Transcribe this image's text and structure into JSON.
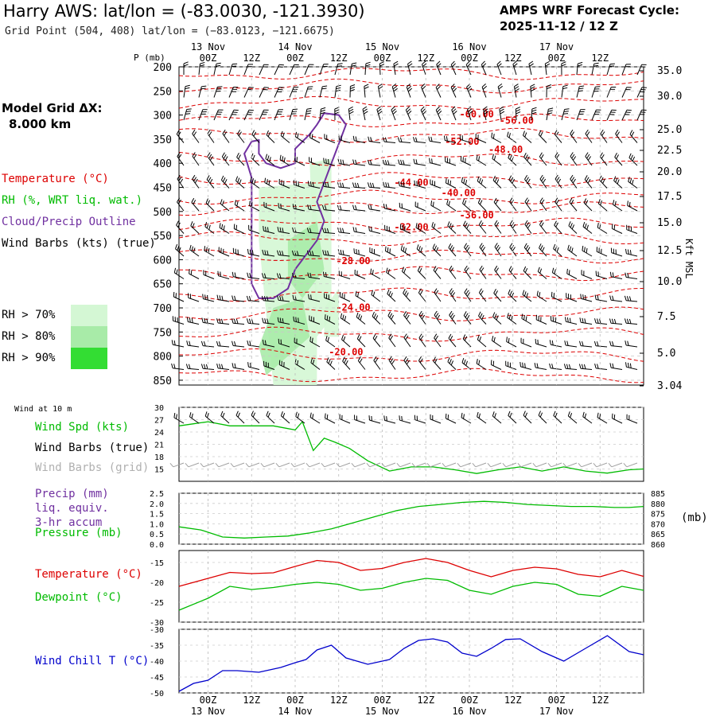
{
  "header": {
    "title": "Harry AWS:  lat/lon = (-83.0030, -121.3930)",
    "subtitle": "Grid Point (504, 408) lat/lon = (−83.0123, −121.6675)",
    "cycle_line1": "AMPS WRF Forecast Cycle:",
    "cycle_line2": "2025-11-12 / 12  Z",
    "grid_line1": "Model Grid ΔX:",
    "grid_line2": "8.000 km"
  },
  "colors": {
    "red": "#dd0000",
    "green": "#00bb00",
    "purple": "#7030a0",
    "blue": "#0000cc",
    "gray": "#a0a0a0",
    "rh70": "#d4f7d4",
    "rh80": "#a8eba8",
    "rh90": "#33dd33"
  },
  "time_axis": {
    "top_dates": [
      "13 Nov",
      "14 Nov",
      "15 Nov",
      "16 Nov",
      "17 Nov"
    ],
    "top_hours": [
      "00Z",
      "12Z",
      "00Z",
      "12Z",
      "00Z",
      "12Z",
      "00Z",
      "12Z",
      "00Z",
      "12Z"
    ],
    "bottom_hours": [
      "00Z",
      "12Z",
      "00Z",
      "12Z",
      "00Z",
      "12Z",
      "00Z",
      "12Z",
      "00Z",
      "12Z"
    ],
    "bottom_dates": [
      "13 Nov",
      "14 Nov",
      "15 Nov",
      "16 Nov",
      "17 Nov"
    ],
    "span_hours_before_first": 8,
    "total_hours": 120
  },
  "upper_panel": {
    "p_label": "P (mb)",
    "pressure_ticks": [
      "200",
      "250",
      "300",
      "350",
      "400",
      "450",
      "500",
      "550",
      "600",
      "650",
      "700",
      "750",
      "800",
      "850"
    ],
    "height_ticks": [
      "35.0",
      "30.0",
      "25.0",
      "22.5",
      "20.0",
      "17.5",
      "15.0",
      "12.5",
      "10.0",
      "7.5",
      "5.0",
      "3.04"
    ],
    "height_axis_label": "Kft MSL",
    "legend_temperature": "Temperature (°C)",
    "legend_rh": "RH (%, WRT liq. wat.)",
    "legend_cloud": "Cloud/Precip Outline",
    "legend_wind": "Wind Barbs (kts) (true)",
    "rh_legend": [
      "RH > 70%",
      "RH > 80%",
      "RH > 90%"
    ]
  },
  "chart_data": [
    {
      "type": "line",
      "title": "Temperature cross-section isotherms",
      "ylabel": "Pressure (mb)",
      "ylim": [
        860,
        200
      ],
      "isotherm_labels": [
        {
          "label": "-60.00",
          "time_h": 74,
          "p": 305
        },
        {
          "label": "-56.00",
          "time_h": 85,
          "p": 318
        },
        {
          "label": "-52.00",
          "time_h": 70,
          "p": 362
        },
        {
          "label": "-48.00",
          "time_h": 82,
          "p": 378
        },
        {
          "label": "-44.00",
          "time_h": 56,
          "p": 447
        },
        {
          "label": "-40.00",
          "time_h": 69,
          "p": 468
        },
        {
          "label": "-36.00",
          "time_h": 74,
          "p": 514
        },
        {
          "label": "-32.00",
          "time_h": 56,
          "p": 539
        },
        {
          "label": "-28.00",
          "time_h": 40,
          "p": 609
        },
        {
          "label": "-24.00",
          "time_h": 40,
          "p": 706
        },
        {
          "label": "-20.00",
          "time_h": 38,
          "p": 798
        }
      ]
    },
    {
      "type": "line",
      "title": "Wind at 10 m",
      "label_header": "Wind at 10 m",
      "legend": [
        "Wind Spd (kts)",
        "Wind Barbs (true)",
        "Wind Barbs (grid)"
      ],
      "ylim": [
        12,
        30
      ],
      "yticks": [
        "30",
        "27",
        "24",
        "21",
        "18",
        "15"
      ],
      "series": [
        {
          "name": "Wind Spd (kts)",
          "x": [
            -8,
            -4,
            0,
            6,
            12,
            18,
            24,
            26,
            29,
            32,
            35,
            39,
            44,
            50,
            56,
            62,
            68,
            74,
            80,
            86,
            92,
            98,
            104,
            110,
            116,
            120
          ],
          "values": [
            25.5,
            26,
            26.5,
            25.5,
            25.5,
            25.5,
            24.5,
            26.5,
            19.5,
            22.5,
            21.5,
            20,
            17,
            14.5,
            15.5,
            15.5,
            14.8,
            13.9,
            14.8,
            15.5,
            14.5,
            15.5,
            14.5,
            14,
            14.8,
            15
          ]
        }
      ]
    },
    {
      "type": "line",
      "title": "Precip and Pressure",
      "legend": [
        "Precip (mm)",
        "liq. equiv.",
        "3-hr accum",
        "Pressure (mb)"
      ],
      "precip_ticks": [
        "2.5",
        "2.0",
        "1.5",
        "1.0",
        "0.5",
        "0.0"
      ],
      "pressure_ticks": [
        "885",
        "880",
        "875",
        "870",
        "865",
        "860"
      ],
      "pressure_unit": "(mb)",
      "ylim_precip": [
        0,
        2.5
      ],
      "ylim_pressure": [
        860,
        885
      ],
      "series": [
        {
          "name": "Pressure (mb)",
          "x": [
            -8,
            -2,
            4,
            10,
            16,
            22,
            28,
            34,
            40,
            46,
            52,
            58,
            64,
            70,
            76,
            82,
            88,
            94,
            100,
            106,
            112,
            116,
            120
          ],
          "values": [
            868.5,
            867,
            863.5,
            863,
            863.5,
            864,
            865.5,
            867.5,
            870.5,
            873.5,
            876.5,
            878.5,
            879.5,
            880.5,
            881,
            880.5,
            879.5,
            879,
            878.5,
            878.5,
            878,
            878,
            878.5
          ]
        }
      ]
    },
    {
      "type": "line",
      "title": "Temperature and Dewpoint",
      "legend": [
        "Temperature (°C)",
        "Dewpoint (°C)"
      ],
      "yticks": [
        "-15",
        "-20",
        "-25",
        "-30"
      ],
      "ylim": [
        -30,
        -12
      ],
      "series": [
        {
          "name": "Temperature (°C)",
          "x": [
            -8,
            0,
            6,
            12,
            18,
            24,
            30,
            36,
            42,
            48,
            54,
            60,
            66,
            72,
            78,
            84,
            90,
            96,
            102,
            108,
            114,
            120
          ],
          "values": [
            -21,
            -19,
            -17.5,
            -17.8,
            -17.6,
            -16,
            -14.5,
            -15,
            -17,
            -16.5,
            -15,
            -14,
            -15,
            -17,
            -18.6,
            -17,
            -16.2,
            -16.6,
            -18,
            -18.6,
            -17,
            -18.5
          ]
        },
        {
          "name": "Dewpoint (°C)",
          "x": [
            -8,
            0,
            6,
            12,
            18,
            24,
            30,
            36,
            42,
            48,
            54,
            60,
            66,
            72,
            78,
            84,
            90,
            96,
            102,
            108,
            114,
            120
          ],
          "values": [
            -27,
            -24,
            -21,
            -21.8,
            -21.3,
            -20.5,
            -20,
            -20.5,
            -22,
            -21.5,
            -20,
            -19,
            -19.5,
            -22,
            -23,
            -21,
            -20,
            -20.5,
            -23,
            -23.5,
            -21,
            -22
          ]
        }
      ]
    },
    {
      "type": "line",
      "title": "Wind Chill",
      "legend": [
        "Wind Chill T (°C)"
      ],
      "yticks": [
        "-30",
        "-35",
        "-40",
        "-45",
        "-50"
      ],
      "ylim": [
        -50,
        -30
      ],
      "series": [
        {
          "name": "Wind Chill T (°C)",
          "x": [
            -8,
            -4,
            0,
            4,
            8,
            14,
            20,
            24,
            27,
            30,
            34,
            38,
            44,
            50,
            54,
            58,
            62,
            66,
            70,
            74,
            78,
            82,
            86,
            92,
            98,
            104,
            110,
            116,
            120
          ],
          "values": [
            -49.5,
            -47,
            -46,
            -43,
            -43,
            -43.5,
            -42,
            -40.5,
            -39.5,
            -36.5,
            -35,
            -39,
            -41,
            -39.5,
            -36,
            -33.5,
            -33,
            -34,
            -37.5,
            -38.5,
            -36,
            -33.2,
            -33,
            -37,
            -40,
            -36,
            -32,
            -37,
            -38
          ]
        }
      ]
    }
  ]
}
